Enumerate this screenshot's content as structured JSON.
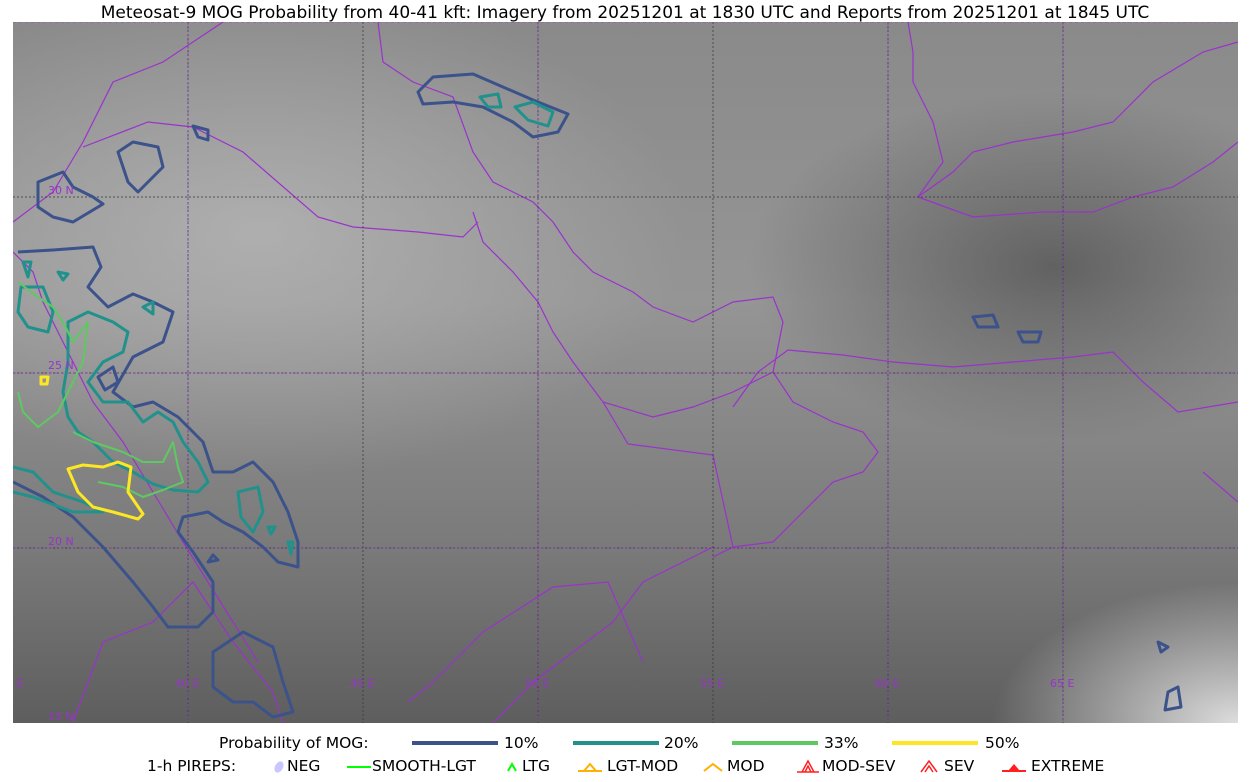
{
  "title": "Meteosat-9 MOG Probability from 40-41 kft: Imagery from 20251201 at 1830 UTC and Reports from 20251201 at 1845 UTC",
  "map": {
    "lon_labels": [
      "35 E",
      "40 E",
      "45 E",
      "50 E",
      "55 E",
      "60 E",
      "65 E"
    ],
    "lat_labels": [
      "30 N",
      "25 N",
      "20 N",
      "15 N"
    ],
    "grid_color": "#9933cc",
    "border_color": "#9933cc"
  },
  "legend": {
    "probability": {
      "label": "Probability of MOG:",
      "items": [
        {
          "label": "10%",
          "color": "#3b528b"
        },
        {
          "label": "20%",
          "color": "#21918c"
        },
        {
          "label": "33%",
          "color": "#5ec962"
        },
        {
          "label": "50%",
          "color": "#fde725"
        }
      ]
    },
    "pireps": {
      "label": "1-h PIREPS:",
      "items": [
        {
          "label": "NEG",
          "color": "#c8c8ff",
          "icon": "neg-icon"
        },
        {
          "label": "SMOOTH-LGT",
          "color": "#00ff00",
          "icon": "smooth-lgt-icon"
        },
        {
          "label": "LTG",
          "color": "#00ff00",
          "icon": "ltg-icon"
        },
        {
          "label": "LGT-MOD",
          "color": "#ffb000",
          "icon": "lgt-mod-icon"
        },
        {
          "label": "MOD",
          "color": "#ffb000",
          "icon": "mod-icon"
        },
        {
          "label": "MOD-SEV",
          "color": "#ff2020",
          "icon": "mod-sev-icon"
        },
        {
          "label": "SEV",
          "color": "#ff2020",
          "icon": "sev-icon"
        },
        {
          "label": "EXTREME",
          "color": "#ff2020",
          "icon": "extreme-icon"
        }
      ]
    }
  }
}
